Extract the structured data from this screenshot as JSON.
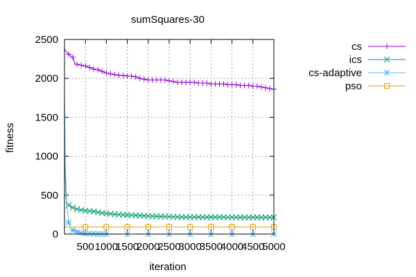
{
  "chart_data": {
    "type": "line",
    "title": "sumSquares-30",
    "xlabel": "iteration",
    "ylabel": "fitness",
    "xlim": [
      0,
      5000
    ],
    "ylim": [
      0,
      2500
    ],
    "x_ticks": [
      500,
      1000,
      1500,
      2000,
      2500,
      3000,
      3500,
      4000,
      4500,
      5000
    ],
    "x_tick_labels": [
      "500",
      "1000",
      "1500",
      "2000",
      "2500",
      "3000",
      "3500",
      "4000",
      "4500",
      "5000"
    ],
    "y_ticks": [
      0,
      500,
      1000,
      1500,
      2000,
      2500
    ],
    "y_tick_labels": [
      "0",
      "500",
      "1000",
      "1500",
      "2000",
      "2500"
    ],
    "grid": true,
    "legend_position": "outside-right-top",
    "series": [
      {
        "name": "cs",
        "color": "#9400d3",
        "marker": "plus",
        "x": [
          0,
          50,
          100,
          200,
          250,
          300,
          400,
          500,
          600,
          700,
          800,
          900,
          1000,
          1100,
          1200,
          1300,
          1400,
          1500,
          1600,
          1700,
          1800,
          1900,
          2000,
          2100,
          2200,
          2300,
          2400,
          2500,
          2600,
          2700,
          2800,
          2900,
          3000,
          3100,
          3200,
          3300,
          3400,
          3500,
          3600,
          3700,
          3800,
          3900,
          4000,
          4100,
          4200,
          4300,
          4400,
          4500,
          4600,
          4700,
          4800,
          4900,
          5000
        ],
        "y": [
          2380,
          2340,
          2310,
          2270,
          2190,
          2180,
          2170,
          2160,
          2140,
          2120,
          2110,
          2090,
          2070,
          2060,
          2050,
          2040,
          2040,
          2030,
          2030,
          2020,
          2000,
          1990,
          1980,
          1980,
          1980,
          1980,
          1980,
          1970,
          1960,
          1950,
          1950,
          1950,
          1950,
          1950,
          1940,
          1940,
          1940,
          1930,
          1930,
          1930,
          1930,
          1920,
          1920,
          1920,
          1910,
          1910,
          1910,
          1900,
          1900,
          1890,
          1880,
          1870,
          1860
        ]
      },
      {
        "name": "ics",
        "color": "#009e73",
        "marker": "x",
        "x": [
          0,
          20,
          40,
          60,
          100,
          150,
          200,
          300,
          400,
          500,
          600,
          700,
          800,
          900,
          1000,
          1100,
          1200,
          1300,
          1400,
          1500,
          1600,
          1700,
          1800,
          1900,
          2000,
          2100,
          2200,
          2300,
          2400,
          2500,
          2600,
          2700,
          2800,
          2900,
          3000,
          3100,
          3200,
          3300,
          3400,
          3500,
          3600,
          3700,
          3800,
          3900,
          4000,
          4100,
          4200,
          4300,
          4400,
          4500,
          4600,
          4700,
          4800,
          4900,
          5000
        ],
        "y": [
          1500,
          700,
          450,
          400,
          370,
          350,
          340,
          320,
          310,
          300,
          295,
          290,
          280,
          270,
          265,
          260,
          255,
          250,
          248,
          245,
          242,
          240,
          238,
          235,
          232,
          230,
          228,
          226,
          225,
          224,
          222,
          220,
          218,
          218,
          218,
          218,
          218,
          217,
          217,
          217,
          217,
          217,
          216,
          216,
          216,
          216,
          215,
          215,
          215,
          215,
          215,
          215,
          215,
          215,
          215
        ]
      },
      {
        "name": "cs-adaptive",
        "color": "#56b4e9",
        "marker": "asterisk",
        "x": [
          0,
          20,
          50,
          100,
          150,
          200,
          300,
          400,
          500,
          600,
          700,
          800,
          900,
          1000,
          1500,
          2000,
          2500,
          3000,
          3500,
          4000,
          4500,
          5000
        ],
        "y": [
          1800,
          900,
          400,
          150,
          80,
          50,
          30,
          15,
          8,
          5,
          3,
          2,
          1,
          1,
          0,
          0,
          0,
          0,
          0,
          0,
          0,
          0
        ]
      },
      {
        "name": "pso",
        "color": "#e69f00",
        "marker": "square",
        "x": [
          0,
          500,
          1000,
          1500,
          2000,
          2500,
          3000,
          3500,
          4000,
          4500,
          5000
        ],
        "y": [
          90,
          90,
          90,
          90,
          90,
          90,
          90,
          90,
          90,
          90,
          90
        ]
      }
    ]
  }
}
